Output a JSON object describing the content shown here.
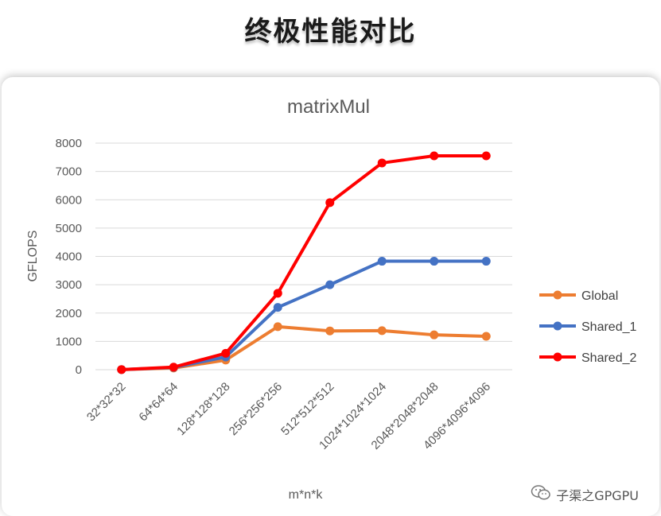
{
  "page": {
    "heading": "终极性能对比",
    "watermark": "子渠之GPGPU",
    "watermark_icon": "wechat-icon"
  },
  "chart_data": {
    "type": "line",
    "title": "matrixMul",
    "xlabel": "m*n*k",
    "ylabel": "GFLOPS",
    "categories": [
      "32*32*32",
      "64*64*64",
      "128*128*128",
      "256*256*256",
      "512*512*512",
      "1024*1024*1024",
      "2048*2048*2048",
      "4096*4096*4096"
    ],
    "ylim": [
      0,
      8000
    ],
    "yticks": [
      "8000",
      "7000",
      "6000",
      "5000",
      "4000",
      "3000",
      "2000",
      "1000",
      "0"
    ],
    "grid": true,
    "legend": "right",
    "series": [
      {
        "name": "Global",
        "color": "#ED7D31",
        "values": [
          5,
          60,
          340,
          1520,
          1370,
          1380,
          1230,
          1180
        ]
      },
      {
        "name": "Shared_1",
        "color": "#4472C4",
        "values": [
          5,
          80,
          450,
          2200,
          3000,
          3830,
          3830,
          3830
        ]
      },
      {
        "name": "Shared_2",
        "color": "#FF0000",
        "values": [
          5,
          90,
          580,
          2700,
          5900,
          7300,
          7550,
          7550
        ]
      }
    ]
  }
}
